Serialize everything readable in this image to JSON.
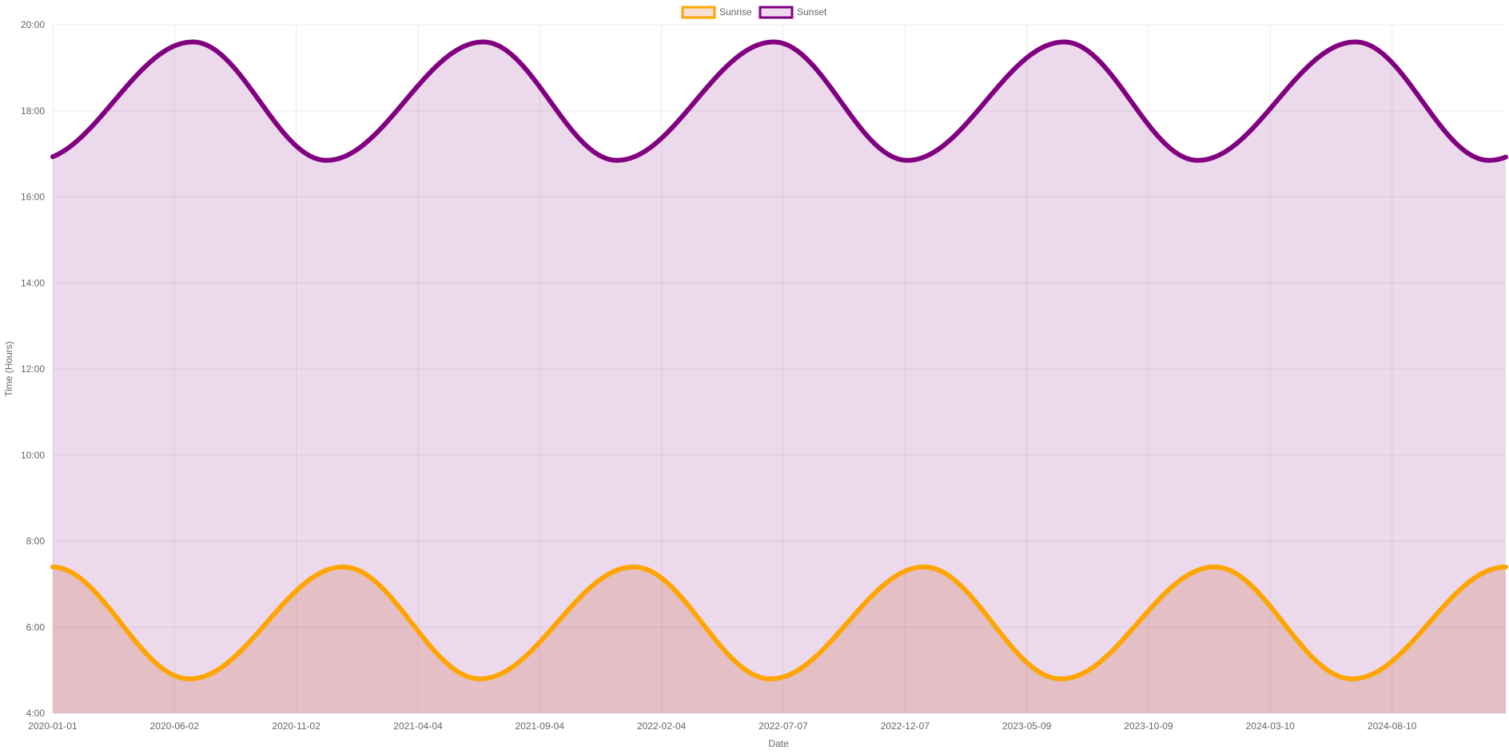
{
  "chart_data": {
    "type": "line",
    "x_axis": {
      "title": "Date",
      "type": "date",
      "range": [
        "2020-01-01",
        "2024-12-31"
      ],
      "tick_labels": [
        "2020-01-01",
        "2020-06-02",
        "2020-11-02",
        "2021-04-04",
        "2021-09-04",
        "2022-02-04",
        "2022-07-07",
        "2022-12-07",
        "2023-05-09",
        "2023-10-09",
        "2024-03-10",
        "2024-08-10"
      ]
    },
    "y_axis": {
      "title": "Time (Hours)",
      "range": [
        4,
        20
      ],
      "ticks": [
        4,
        6,
        8,
        10,
        12,
        14,
        16,
        18,
        20
      ],
      "tick_labels": [
        "4:00",
        "6:00",
        "8:00",
        "10:00",
        "12:00",
        "14:00",
        "16:00",
        "18:00",
        "20:00"
      ]
    },
    "grid": true,
    "legend_position": "top-center",
    "series": [
      {
        "name": "Sunrise",
        "color": "#FFA500",
        "fill": "rgba(210,105,30,0.2)",
        "shape": "sinusoidal, repeats yearly",
        "max": 7.4,
        "max_date": "12-31",
        "min": 4.8,
        "min_date": "06-21"
      },
      {
        "name": "Sunset",
        "color": "#800080",
        "fill": "rgba(128,0,128,0.15)",
        "shape": "sinusoidal, repeats yearly",
        "max": 19.6,
        "max_date": "06-25",
        "min": 16.85,
        "min_date": "12-10"
      }
    ]
  }
}
